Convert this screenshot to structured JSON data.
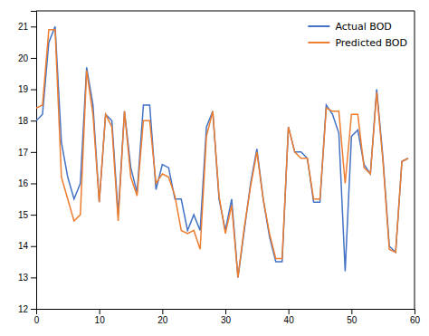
{
  "chart_data": {
    "type": "line",
    "x": [
      0,
      1,
      2,
      3,
      4,
      5,
      6,
      7,
      8,
      9,
      10,
      11,
      12,
      13,
      14,
      15,
      16,
      17,
      18,
      19,
      20,
      21,
      22,
      23,
      24,
      25,
      26,
      27,
      28,
      29,
      30,
      31,
      32,
      33,
      34,
      35,
      36,
      37,
      38,
      39,
      40,
      41,
      42,
      43,
      44,
      45,
      46,
      47,
      48,
      49,
      50,
      51,
      52,
      53,
      54,
      55,
      56,
      57,
      58,
      59
    ],
    "series": [
      {
        "name": "Actual BOD",
        "color": "#4472c4",
        "values": [
          18.0,
          18.2,
          20.5,
          21.0,
          17.3,
          16.2,
          15.5,
          16.0,
          19.7,
          18.5,
          15.4,
          18.2,
          18.0,
          15.0,
          18.3,
          16.5,
          15.7,
          18.5,
          18.5,
          15.8,
          16.6,
          16.5,
          15.5,
          15.5,
          14.5,
          15.0,
          14.5,
          17.8,
          18.3,
          15.5,
          14.5,
          15.5,
          13.0,
          14.5,
          16.0,
          17.1,
          15.5,
          14.3,
          13.5,
          13.5,
          17.8,
          17.0,
          17.0,
          16.8,
          15.4,
          15.4,
          18.5,
          18.2,
          17.6,
          13.2,
          17.5,
          17.7,
          16.6,
          16.3,
          19.0,
          16.8,
          14.0,
          13.8,
          16.7,
          16.8
        ]
      },
      {
        "name": "Predicted BOD",
        "color": "#ed7d31",
        "values": [
          18.4,
          18.5,
          20.9,
          20.9,
          16.2,
          15.5,
          14.8,
          15.0,
          19.6,
          18.2,
          15.4,
          18.2,
          17.8,
          14.8,
          18.3,
          16.2,
          15.6,
          18.0,
          18.0,
          16.0,
          16.3,
          16.2,
          15.6,
          14.5,
          14.4,
          14.5,
          13.9,
          17.5,
          18.3,
          15.6,
          14.4,
          15.3,
          13.0,
          14.6,
          15.9,
          17.0,
          15.5,
          14.4,
          13.6,
          13.6,
          17.8,
          17.0,
          16.8,
          16.8,
          15.5,
          15.5,
          18.4,
          18.3,
          18.3,
          16.0,
          18.2,
          18.2,
          16.5,
          16.3,
          18.9,
          16.7,
          13.9,
          13.8,
          16.7,
          16.8
        ]
      }
    ],
    "xlim": [
      0,
      60
    ],
    "ylim": [
      12,
      21.5
    ],
    "xticks": [
      0,
      10,
      20,
      30,
      40,
      50,
      60
    ],
    "yticks": [
      12,
      13,
      14,
      15,
      16,
      17,
      18,
      19,
      20,
      21
    ],
    "legend": "upper-right",
    "grid": false
  }
}
